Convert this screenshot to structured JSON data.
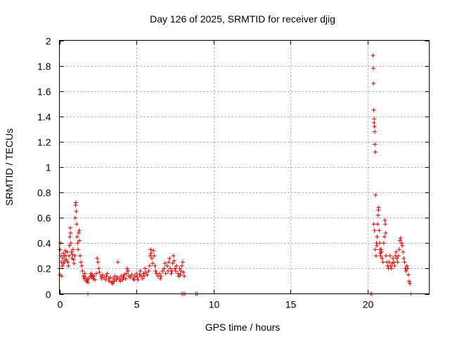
{
  "chart_data": {
    "type": "scatter",
    "title": "Day 126 of 2025, SRMTID for receiver djig",
    "xlabel": "GPS time / hours",
    "ylabel": "SRMTID / TECUs",
    "xlim": [
      0,
      24
    ],
    "ylim": [
      0,
      2
    ],
    "xticks": [
      0,
      5,
      10,
      15,
      20
    ],
    "yticks": [
      0,
      0.2,
      0.4,
      0.6,
      0.8,
      1,
      1.2,
      1.4,
      1.6,
      1.8,
      2
    ],
    "xtick_labels": [
      "0",
      "5",
      "10",
      "15",
      "20"
    ],
    "ytick_labels": [
      "0",
      "0.2",
      "0.4",
      "0.6",
      "0.8",
      "1",
      "1.2",
      "1.4",
      "1.6",
      "1.8",
      "2"
    ],
    "grid": true,
    "marker": "+",
    "marker_color": "#e00000",
    "series": [
      {
        "name": "SRMTID",
        "points": [
          [
            0.0,
            0.2
          ],
          [
            0.03,
            0.15
          ],
          [
            0.05,
            0.35
          ],
          [
            0.08,
            0.4
          ],
          [
            0.1,
            0.3
          ],
          [
            0.12,
            0.25
          ],
          [
            0.15,
            0.14
          ],
          [
            0.18,
            0.22
          ],
          [
            0.22,
            0.28
          ],
          [
            0.25,
            0.32
          ],
          [
            0.28,
            0.24
          ],
          [
            0.32,
            0.3
          ],
          [
            0.35,
            0.26
          ],
          [
            0.38,
            0.34
          ],
          [
            0.42,
            0.3
          ],
          [
            0.45,
            0.27
          ],
          [
            0.5,
            0.33
          ],
          [
            0.55,
            0.25
          ],
          [
            0.58,
            0.22
          ],
          [
            0.62,
            0.3
          ],
          [
            0.65,
            0.38
          ],
          [
            0.68,
            0.45
          ],
          [
            0.7,
            0.52
          ],
          [
            0.72,
            0.48
          ],
          [
            0.75,
            0.4
          ],
          [
            0.78,
            0.33
          ],
          [
            0.82,
            0.28
          ],
          [
            0.85,
            0.31
          ],
          [
            0.88,
            0.35
          ],
          [
            0.92,
            0.27
          ],
          [
            0.95,
            0.24
          ],
          [
            1.0,
            0.3
          ],
          [
            1.02,
            0.6
          ],
          [
            1.05,
            0.7
          ],
          [
            1.07,
            0.72
          ],
          [
            1.1,
            0.65
          ],
          [
            1.12,
            0.55
          ],
          [
            1.15,
            0.45
          ],
          [
            1.18,
            0.4
          ],
          [
            1.22,
            0.35
          ],
          [
            1.25,
            0.48
          ],
          [
            1.28,
            0.5
          ],
          [
            1.3,
            0.42
          ],
          [
            1.35,
            0.3
          ],
          [
            1.4,
            0.25
          ],
          [
            1.45,
            0.22
          ],
          [
            1.5,
            0.18
          ],
          [
            1.55,
            0.14
          ],
          [
            1.6,
            0.12
          ],
          [
            1.65,
            0.16
          ],
          [
            1.7,
            0.13
          ],
          [
            1.75,
            0.1
          ],
          [
            1.8,
            0.11
          ],
          [
            1.85,
            0.09
          ],
          [
            1.9,
            0.12
          ],
          [
            2.0,
            0.14
          ],
          [
            2.05,
            0.16
          ],
          [
            2.1,
            0.13
          ],
          [
            2.15,
            0.15
          ],
          [
            2.2,
            0.12
          ],
          [
            2.25,
            0.14
          ],
          [
            2.3,
            0.11
          ],
          [
            2.4,
            0.16
          ],
          [
            2.45,
            0.28
          ],
          [
            2.5,
            0.25
          ],
          [
            2.55,
            0.2
          ],
          [
            2.6,
            0.17
          ],
          [
            2.7,
            0.14
          ],
          [
            2.75,
            0.12
          ],
          [
            2.8,
            0.15
          ],
          [
            2.9,
            0.13
          ],
          [
            3.0,
            0.11
          ],
          [
            3.05,
            0.14
          ],
          [
            3.1,
            0.16
          ],
          [
            3.2,
            0.12
          ],
          [
            3.25,
            0.1
          ],
          [
            3.3,
            0.13
          ],
          [
            3.4,
            0.09
          ],
          [
            3.45,
            0.08
          ],
          [
            3.5,
            0.12
          ],
          [
            3.55,
            0.1
          ],
          [
            3.6,
            0.14
          ],
          [
            3.7,
            0.11
          ],
          [
            3.75,
            0.13
          ],
          [
            3.8,
            0.25
          ],
          [
            3.9,
            0.12
          ],
          [
            3.95,
            0.1
          ],
          [
            4.0,
            0.14
          ],
          [
            4.1,
            0.11
          ],
          [
            4.15,
            0.13
          ],
          [
            4.2,
            0.15
          ],
          [
            4.3,
            0.12
          ],
          [
            4.35,
            0.16
          ],
          [
            4.4,
            0.2
          ],
          [
            4.45,
            0.18
          ],
          [
            4.5,
            0.14
          ],
          [
            4.6,
            0.13
          ],
          [
            4.7,
            0.15
          ],
          [
            4.8,
            0.12
          ],
          [
            4.85,
            0.11
          ],
          [
            4.9,
            0.14
          ],
          [
            5.0,
            0.16
          ],
          [
            5.05,
            0.13
          ],
          [
            5.1,
            0.11
          ],
          [
            5.2,
            0.15
          ],
          [
            5.25,
            0.18
          ],
          [
            5.3,
            0.14
          ],
          [
            5.4,
            0.12
          ],
          [
            5.45,
            0.16
          ],
          [
            5.5,
            0.14
          ],
          [
            5.55,
            0.2
          ],
          [
            5.6,
            0.17
          ],
          [
            5.7,
            0.15
          ],
          [
            5.8,
            0.18
          ],
          [
            5.85,
            0.22
          ],
          [
            5.9,
            0.3
          ],
          [
            5.92,
            0.35
          ],
          [
            5.95,
            0.32
          ],
          [
            6.0,
            0.28
          ],
          [
            6.05,
            0.24
          ],
          [
            6.1,
            0.34
          ],
          [
            6.15,
            0.3
          ],
          [
            6.2,
            0.22
          ],
          [
            6.25,
            0.18
          ],
          [
            6.3,
            0.16
          ],
          [
            6.4,
            0.14
          ],
          [
            6.5,
            0.16
          ],
          [
            6.55,
            0.12
          ],
          [
            6.6,
            0.14
          ],
          [
            6.7,
            0.18
          ],
          [
            6.8,
            0.2
          ],
          [
            6.85,
            0.24
          ],
          [
            6.9,
            0.16
          ],
          [
            7.0,
            0.22
          ],
          [
            7.05,
            0.18
          ],
          [
            7.1,
            0.25
          ],
          [
            7.15,
            0.28
          ],
          [
            7.2,
            0.2
          ],
          [
            7.25,
            0.16
          ],
          [
            7.3,
            0.18
          ],
          [
            7.35,
            0.24
          ],
          [
            7.4,
            0.3
          ],
          [
            7.45,
            0.26
          ],
          [
            7.5,
            0.2
          ],
          [
            7.55,
            0.18
          ],
          [
            7.6,
            0.22
          ],
          [
            7.7,
            0.16
          ],
          [
            7.75,
            0.14
          ],
          [
            7.8,
            0.2
          ],
          [
            7.85,
            0.15
          ],
          [
            7.9,
            0.18
          ],
          [
            7.95,
            0.22
          ],
          [
            8.0,
            0.25
          ],
          [
            8.05,
            0.17
          ],
          [
            8.1,
            0.14
          ],
          [
            1.85,
            0.0
          ],
          [
            7.95,
            0.0
          ],
          [
            8.05,
            0.0
          ],
          [
            8.15,
            0.0
          ],
          [
            8.85,
            0.0
          ],
          [
            8.95,
            0.0
          ],
          [
            20.2,
            0.0
          ],
          [
            20.28,
            0.0
          ],
          [
            20.35,
            1.88
          ],
          [
            20.37,
            1.78
          ],
          [
            20.38,
            1.66
          ],
          [
            20.4,
            1.45
          ],
          [
            20.42,
            1.35
          ],
          [
            20.43,
            1.38
          ],
          [
            20.45,
            1.32
          ],
          [
            20.47,
            1.28
          ],
          [
            20.48,
            1.18
          ],
          [
            20.5,
            1.12
          ],
          [
            20.52,
            0.78
          ],
          [
            20.4,
            0.55
          ],
          [
            20.45,
            0.5
          ],
          [
            20.5,
            0.35
          ],
          [
            20.55,
            0.3
          ],
          [
            20.58,
            0.4
          ],
          [
            20.6,
            0.38
          ],
          [
            20.62,
            0.45
          ],
          [
            20.65,
            0.55
          ],
          [
            20.68,
            0.62
          ],
          [
            20.7,
            0.66
          ],
          [
            20.72,
            0.68
          ],
          [
            20.75,
            0.5
          ],
          [
            20.78,
            0.4
          ],
          [
            20.8,
            0.35
          ],
          [
            20.82,
            0.32
          ],
          [
            20.85,
            0.3
          ],
          [
            20.88,
            0.35
          ],
          [
            20.9,
            0.33
          ],
          [
            20.95,
            0.28
          ],
          [
            21.0,
            0.25
          ],
          [
            21.05,
            0.4
          ],
          [
            21.1,
            0.45
          ],
          [
            21.12,
            0.58
          ],
          [
            21.15,
            0.55
          ],
          [
            21.18,
            0.48
          ],
          [
            21.2,
            0.3
          ],
          [
            21.25,
            0.25
          ],
          [
            21.3,
            0.22
          ],
          [
            21.35,
            0.2
          ],
          [
            21.4,
            0.25
          ],
          [
            21.45,
            0.3
          ],
          [
            21.5,
            0.22
          ],
          [
            21.55,
            0.2
          ],
          [
            21.6,
            0.24
          ],
          [
            21.65,
            0.28
          ],
          [
            21.7,
            0.25
          ],
          [
            21.75,
            0.22
          ],
          [
            21.8,
            0.3
          ],
          [
            21.85,
            0.33
          ],
          [
            21.9,
            0.28
          ],
          [
            21.95,
            0.25
          ],
          [
            22.0,
            0.3
          ],
          [
            22.05,
            0.35
          ],
          [
            22.1,
            0.42
          ],
          [
            22.15,
            0.44
          ],
          [
            22.2,
            0.4
          ],
          [
            22.25,
            0.38
          ],
          [
            22.3,
            0.33
          ],
          [
            22.35,
            0.28
          ],
          [
            22.4,
            0.25
          ],
          [
            22.45,
            0.2
          ],
          [
            22.5,
            0.18
          ],
          [
            22.55,
            0.22
          ],
          [
            22.6,
            0.2
          ],
          [
            22.65,
            0.15
          ],
          [
            22.7,
            0.1
          ],
          [
            22.75,
            0.08
          ],
          [
            22.8,
            0.0
          ]
        ]
      }
    ]
  }
}
